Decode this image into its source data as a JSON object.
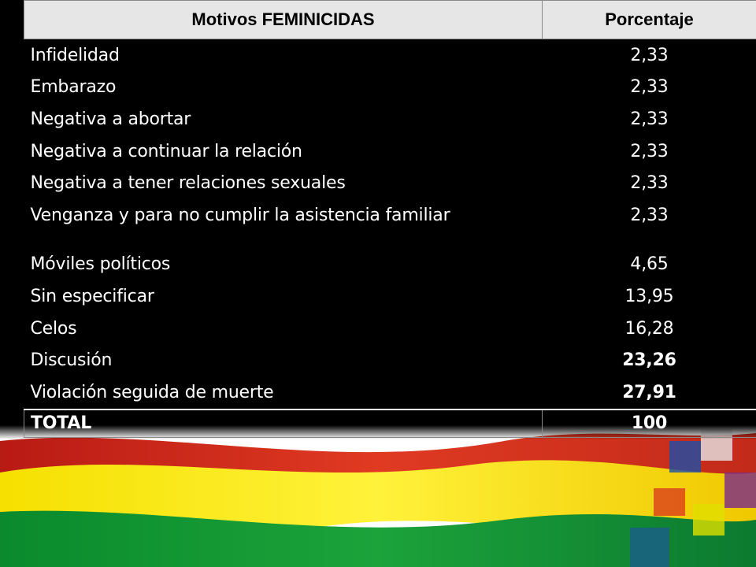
{
  "table": {
    "headers": [
      "Motivos FEMINICIDAS",
      "Porcentaje"
    ],
    "rows": [
      {
        "motivo": "Infidelidad",
        "porcentaje": "2,33"
      },
      {
        "motivo": "Embarazo",
        "porcentaje": "2,33"
      },
      {
        "motivo": "Negativa a abortar",
        "porcentaje": "2,33"
      },
      {
        "motivo": "Negativa a continuar la relación",
        "porcentaje": "2,33"
      },
      {
        "motivo": "Negativa a tener relaciones sexuales",
        "porcentaje": "2,33"
      },
      {
        "motivo": "Venganza y para no cumplir la asistencia familiar",
        "porcentaje": "2,33"
      },
      {
        "motivo": "Móviles políticos",
        "porcentaje": "4,65"
      },
      {
        "motivo": "Sin especificar",
        "porcentaje": "13,95"
      },
      {
        "motivo": "Celos",
        "porcentaje": "16,28"
      },
      {
        "motivo": "Discusión",
        "porcentaje": "23,26"
      },
      {
        "motivo": "Violación seguida de muerte",
        "porcentaje": "27,91"
      }
    ],
    "total": {
      "motivo": "TOTAL",
      "porcentaje": "100"
    }
  },
  "colors": {
    "background": "#000000",
    "header_bg": "#e6e6e6",
    "text": "#ffffff",
    "flag_red": "#d52b1e",
    "flag_yellow": "#f9e300",
    "flag_green": "#007934"
  }
}
